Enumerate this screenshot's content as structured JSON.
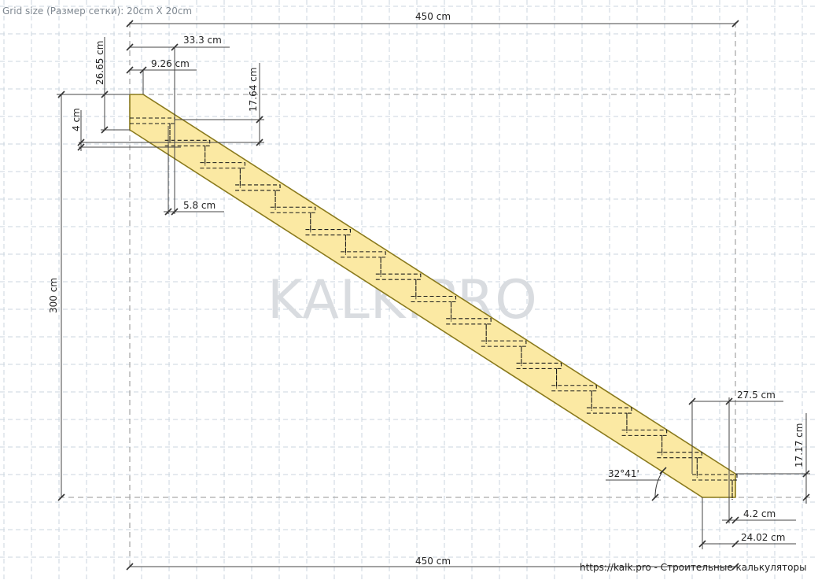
{
  "header": {
    "grid_size": "Grid size (Размер сетки): 20cm X 20cm"
  },
  "watermark": "KALK.PRO",
  "footer": {
    "site": "https://kalk.pro - Строительные калькуляторы"
  },
  "dimensions": {
    "top_width": "450 cm",
    "bottom_width": "450 cm",
    "total_height": "300 cm",
    "tread_depth": "33.3 cm",
    "overhang": "9.26 cm",
    "top_offset": "26.65 cm",
    "riser_height": "17.64 cm",
    "thickness": "4 cm",
    "tread_gap": "5.8 cm",
    "last_tread": "27.5 cm",
    "last_riser": "17.17 cm",
    "bottom_gap": "4.2 cm",
    "bottom_offset": "24.02 cm"
  },
  "angle": "32°41'",
  "steps_count": 17
}
